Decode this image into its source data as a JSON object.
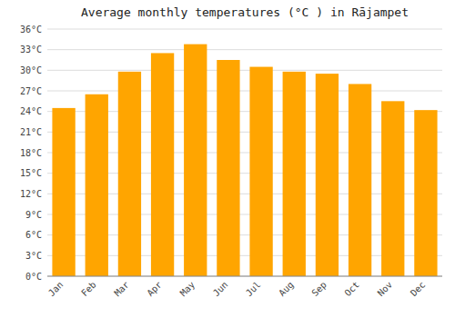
{
  "chart_data": {
    "type": "bar",
    "title": "Average monthly temperatures (°C ) in Rājampet",
    "categories": [
      "Jan",
      "Feb",
      "Mar",
      "Apr",
      "May",
      "Jun",
      "Jul",
      "Aug",
      "Sep",
      "Oct",
      "Nov",
      "Dec"
    ],
    "values": [
      24.5,
      26.5,
      29.8,
      32.5,
      33.8,
      31.5,
      30.5,
      29.8,
      29.5,
      28.0,
      25.5,
      24.2
    ],
    "color": "#FFA500",
    "ylim": [
      0,
      36
    ],
    "yticks": [
      {
        "value": 0,
        "label": "0°C"
      },
      {
        "value": 3,
        "label": "3°C"
      },
      {
        "value": 6,
        "label": "6°C"
      },
      {
        "value": 9,
        "label": "9°C"
      },
      {
        "value": 12,
        "label": "12°C"
      },
      {
        "value": 15,
        "label": "15°C"
      },
      {
        "value": 18,
        "label": "18°C"
      },
      {
        "value": 21,
        "label": "21°C"
      },
      {
        "value": 24,
        "label": "24°C"
      },
      {
        "value": 27,
        "label": "27°C"
      },
      {
        "value": 30,
        "label": "30°C"
      },
      {
        "value": 33,
        "label": "33°C"
      },
      {
        "value": 36,
        "label": "36°C"
      }
    ],
    "grid": true
  }
}
